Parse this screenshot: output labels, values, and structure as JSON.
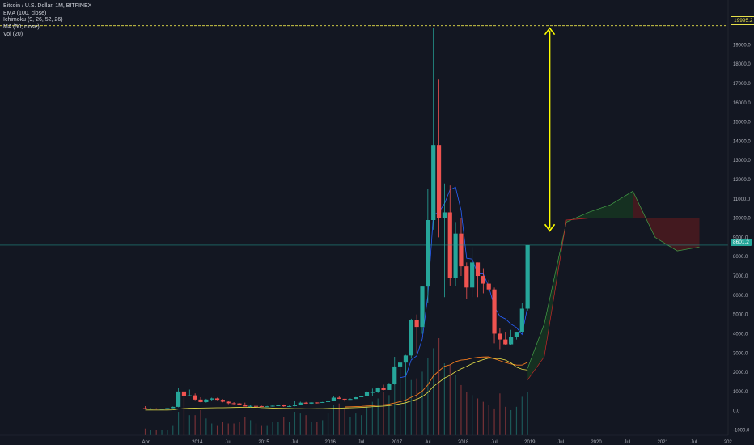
{
  "legend": {
    "title": "Bitcoin / U.S. Dollar, 1M, BITFINEX",
    "ema": "EMA (100, close)",
    "ichimoku": "Ichimoku (9, 26, 52, 26)",
    "ma": "MA (50, close)",
    "vol": "Vol (20)"
  },
  "badges": {
    "high": "19995.2",
    "last": "8601.2"
  },
  "colors": {
    "background": "#131722",
    "up": "#26a69a",
    "down": "#ef5350",
    "ema": "#f57c1f",
    "ma": "#e8e24a",
    "arrow": "#ffff00",
    "cloud_green": "#1b5e20",
    "cloud_red": "#7f1d1d"
  },
  "chart_data": {
    "type": "candlestick",
    "symbol": "Bitcoin / U.S. Dollar",
    "interval": "1M",
    "exchange": "BITFINEX",
    "y_ticks": [
      "19000.0",
      "18000.0",
      "17000.0",
      "16000.0",
      "15000.0",
      "14000.0",
      "13000.0",
      "12000.0",
      "11000.0",
      "10000.0",
      "9000.0",
      "8000.0",
      "7000.0",
      "6000.0",
      "5000.0",
      "4000.0",
      "3000.0",
      "2000.0",
      "1000.0",
      "0.0",
      "-1000.0"
    ],
    "ylim": [
      -1400,
      21200
    ],
    "x_ticks": [
      "Apr",
      "2014",
      "Jul",
      "2015",
      "Jul",
      "2016",
      "Jul",
      "2017",
      "Jul",
      "2018",
      "Jul",
      "2019",
      "Jul",
      "2020",
      "Jul",
      "2021",
      "Jul",
      "202"
    ],
    "start": "2013-04",
    "high_line": 19995.2,
    "last_price": 8601.2,
    "annotation": "arrow from all-time high 19995.2 down to ~9300",
    "candles": [
      [
        130,
        240,
        90,
        100
      ],
      [
        100,
        130,
        80,
        110
      ],
      [
        110,
        130,
        65,
        85
      ],
      [
        85,
        110,
        80,
        100
      ],
      [
        100,
        140,
        90,
        135
      ],
      [
        135,
        220,
        125,
        200
      ],
      [
        200,
        1200,
        180,
        1000
      ],
      [
        1000,
        1100,
        520,
        780
      ],
      [
        780,
        1100,
        780,
        800
      ],
      [
        800,
        900,
        550,
        580
      ],
      [
        580,
        700,
        440,
        450
      ],
      [
        450,
        620,
        420,
        580
      ],
      [
        580,
        680,
        520,
        640
      ],
      [
        640,
        680,
        550,
        570
      ],
      [
        570,
        600,
        440,
        470
      ],
      [
        470,
        490,
        340,
        390
      ],
      [
        390,
        450,
        330,
        380
      ],
      [
        380,
        400,
        300,
        320
      ],
      [
        320,
        420,
        280,
        220
      ],
      [
        220,
        320,
        180,
        250
      ],
      [
        250,
        260,
        200,
        240
      ],
      [
        240,
        260,
        210,
        230
      ],
      [
        230,
        250,
        210,
        230
      ],
      [
        230,
        300,
        200,
        260
      ],
      [
        260,
        290,
        240,
        280
      ],
      [
        280,
        330,
        200,
        230
      ],
      [
        230,
        270,
        200,
        240
      ],
      [
        240,
        500,
        230,
        320
      ],
      [
        320,
        470,
        300,
        420
      ],
      [
        420,
        460,
        360,
        370
      ],
      [
        370,
        440,
        360,
        430
      ],
      [
        430,
        440,
        370,
        420
      ],
      [
        420,
        460,
        410,
        450
      ],
      [
        450,
        470,
        440,
        530
      ],
      [
        530,
        780,
        530,
        680
      ],
      [
        680,
        770,
        610,
        620
      ],
      [
        620,
        620,
        480,
        580
      ],
      [
        580,
        640,
        570,
        610
      ],
      [
        610,
        710,
        610,
        700
      ],
      [
        700,
        750,
        700,
        750
      ],
      [
        750,
        1000,
        750,
        960
      ],
      [
        960,
        1150,
        750,
        970
      ],
      [
        970,
        1210,
        920,
        1190
      ],
      [
        1190,
        1350,
        1060,
        1080
      ],
      [
        1080,
        1450,
        1080,
        1410
      ],
      [
        1410,
        2800,
        1350,
        2300
      ],
      [
        2300,
        2900,
        2200,
        2500
      ],
      [
        2500,
        2900,
        1830,
        2870
      ],
      [
        2870,
        4780,
        2700,
        4700
      ],
      [
        4700,
        5000,
        3000,
        4350
      ],
      [
        4350,
        6470,
        4000,
        6450
      ],
      [
        6450,
        11500,
        5600,
        9900
      ],
      [
        9900,
        19900,
        9400,
        13800
      ],
      [
        13800,
        17200,
        9000,
        10000
      ],
      [
        10000,
        11800,
        5900,
        10300
      ],
      [
        10300,
        11700,
        6500,
        6900
      ],
      [
        6900,
        9800,
        6500,
        9200
      ],
      [
        9200,
        10000,
        7000,
        7500
      ],
      [
        7500,
        7700,
        5800,
        6400
      ],
      [
        6400,
        8500,
        5900,
        7700
      ],
      [
        7700,
        7700,
        5900,
        7000
      ],
      [
        7000,
        7400,
        6100,
        6600
      ],
      [
        6600,
        6800,
        6200,
        6300
      ],
      [
        6300,
        6400,
        3500,
        4000
      ],
      [
        4000,
        4300,
        3200,
        3700
      ],
      [
        3700,
        4100,
        3400,
        3450
      ],
      [
        3450,
        4200,
        3400,
        3850
      ],
      [
        3850,
        4100,
        3700,
        4100
      ],
      [
        4100,
        5600,
        4100,
        5300
      ],
      [
        5300,
        8600,
        5200,
        8600
      ]
    ],
    "volume": [
      40,
      30,
      30,
      30,
      30,
      60,
      140,
      230,
      120,
      120,
      150,
      100,
      70,
      60,
      80,
      70,
      70,
      80,
      110,
      90,
      70,
      60,
      60,
      80,
      80,
      110,
      80,
      140,
      130,
      120,
      80,
      80,
      90,
      130,
      180,
      190,
      160,
      110,
      130,
      120,
      170,
      200,
      220,
      260,
      240,
      350,
      420,
      380,
      330,
      340,
      380,
      460,
      520,
      580,
      430,
      420,
      360,
      300,
      260,
      240,
      220,
      200,
      180,
      160,
      250,
      170,
      150,
      170,
      230,
      260
    ]
  }
}
